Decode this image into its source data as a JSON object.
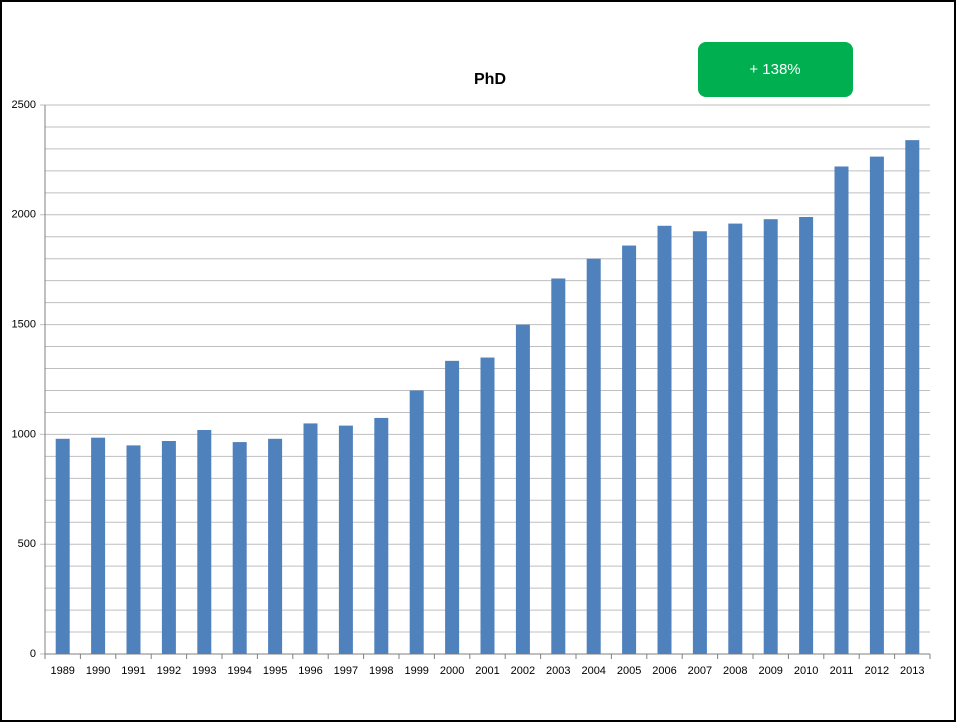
{
  "chart_data": {
    "type": "bar",
    "title": "PhD",
    "annotation": "+ 138%",
    "categories": [
      "1989",
      "1990",
      "1991",
      "1992",
      "1993",
      "1994",
      "1995",
      "1996",
      "1997",
      "1998",
      "1999",
      "2000",
      "2001",
      "2002",
      "2003",
      "2004",
      "2005",
      "2006",
      "2007",
      "2008",
      "2009",
      "2010",
      "2011",
      "2012",
      "2013"
    ],
    "values": [
      980,
      985,
      950,
      970,
      1020,
      965,
      980,
      1050,
      1040,
      1075,
      1200,
      1335,
      1350,
      1500,
      1710,
      1800,
      1860,
      1950,
      1925,
      1960,
      1980,
      1990,
      2220,
      2265,
      2340
    ],
    "color": "#4f81bd",
    "annotation_color": "#00b050",
    "ylim": [
      0,
      2500
    ],
    "yticks": [
      0,
      500,
      1000,
      1500,
      2000,
      2500
    ],
    "minor_yticks": [
      100,
      200,
      300,
      400,
      600,
      700,
      800,
      900,
      1100,
      1200,
      1300,
      1400,
      1600,
      1700,
      1800,
      1900,
      2100,
      2200,
      2300,
      2400
    ],
    "grid": true
  }
}
